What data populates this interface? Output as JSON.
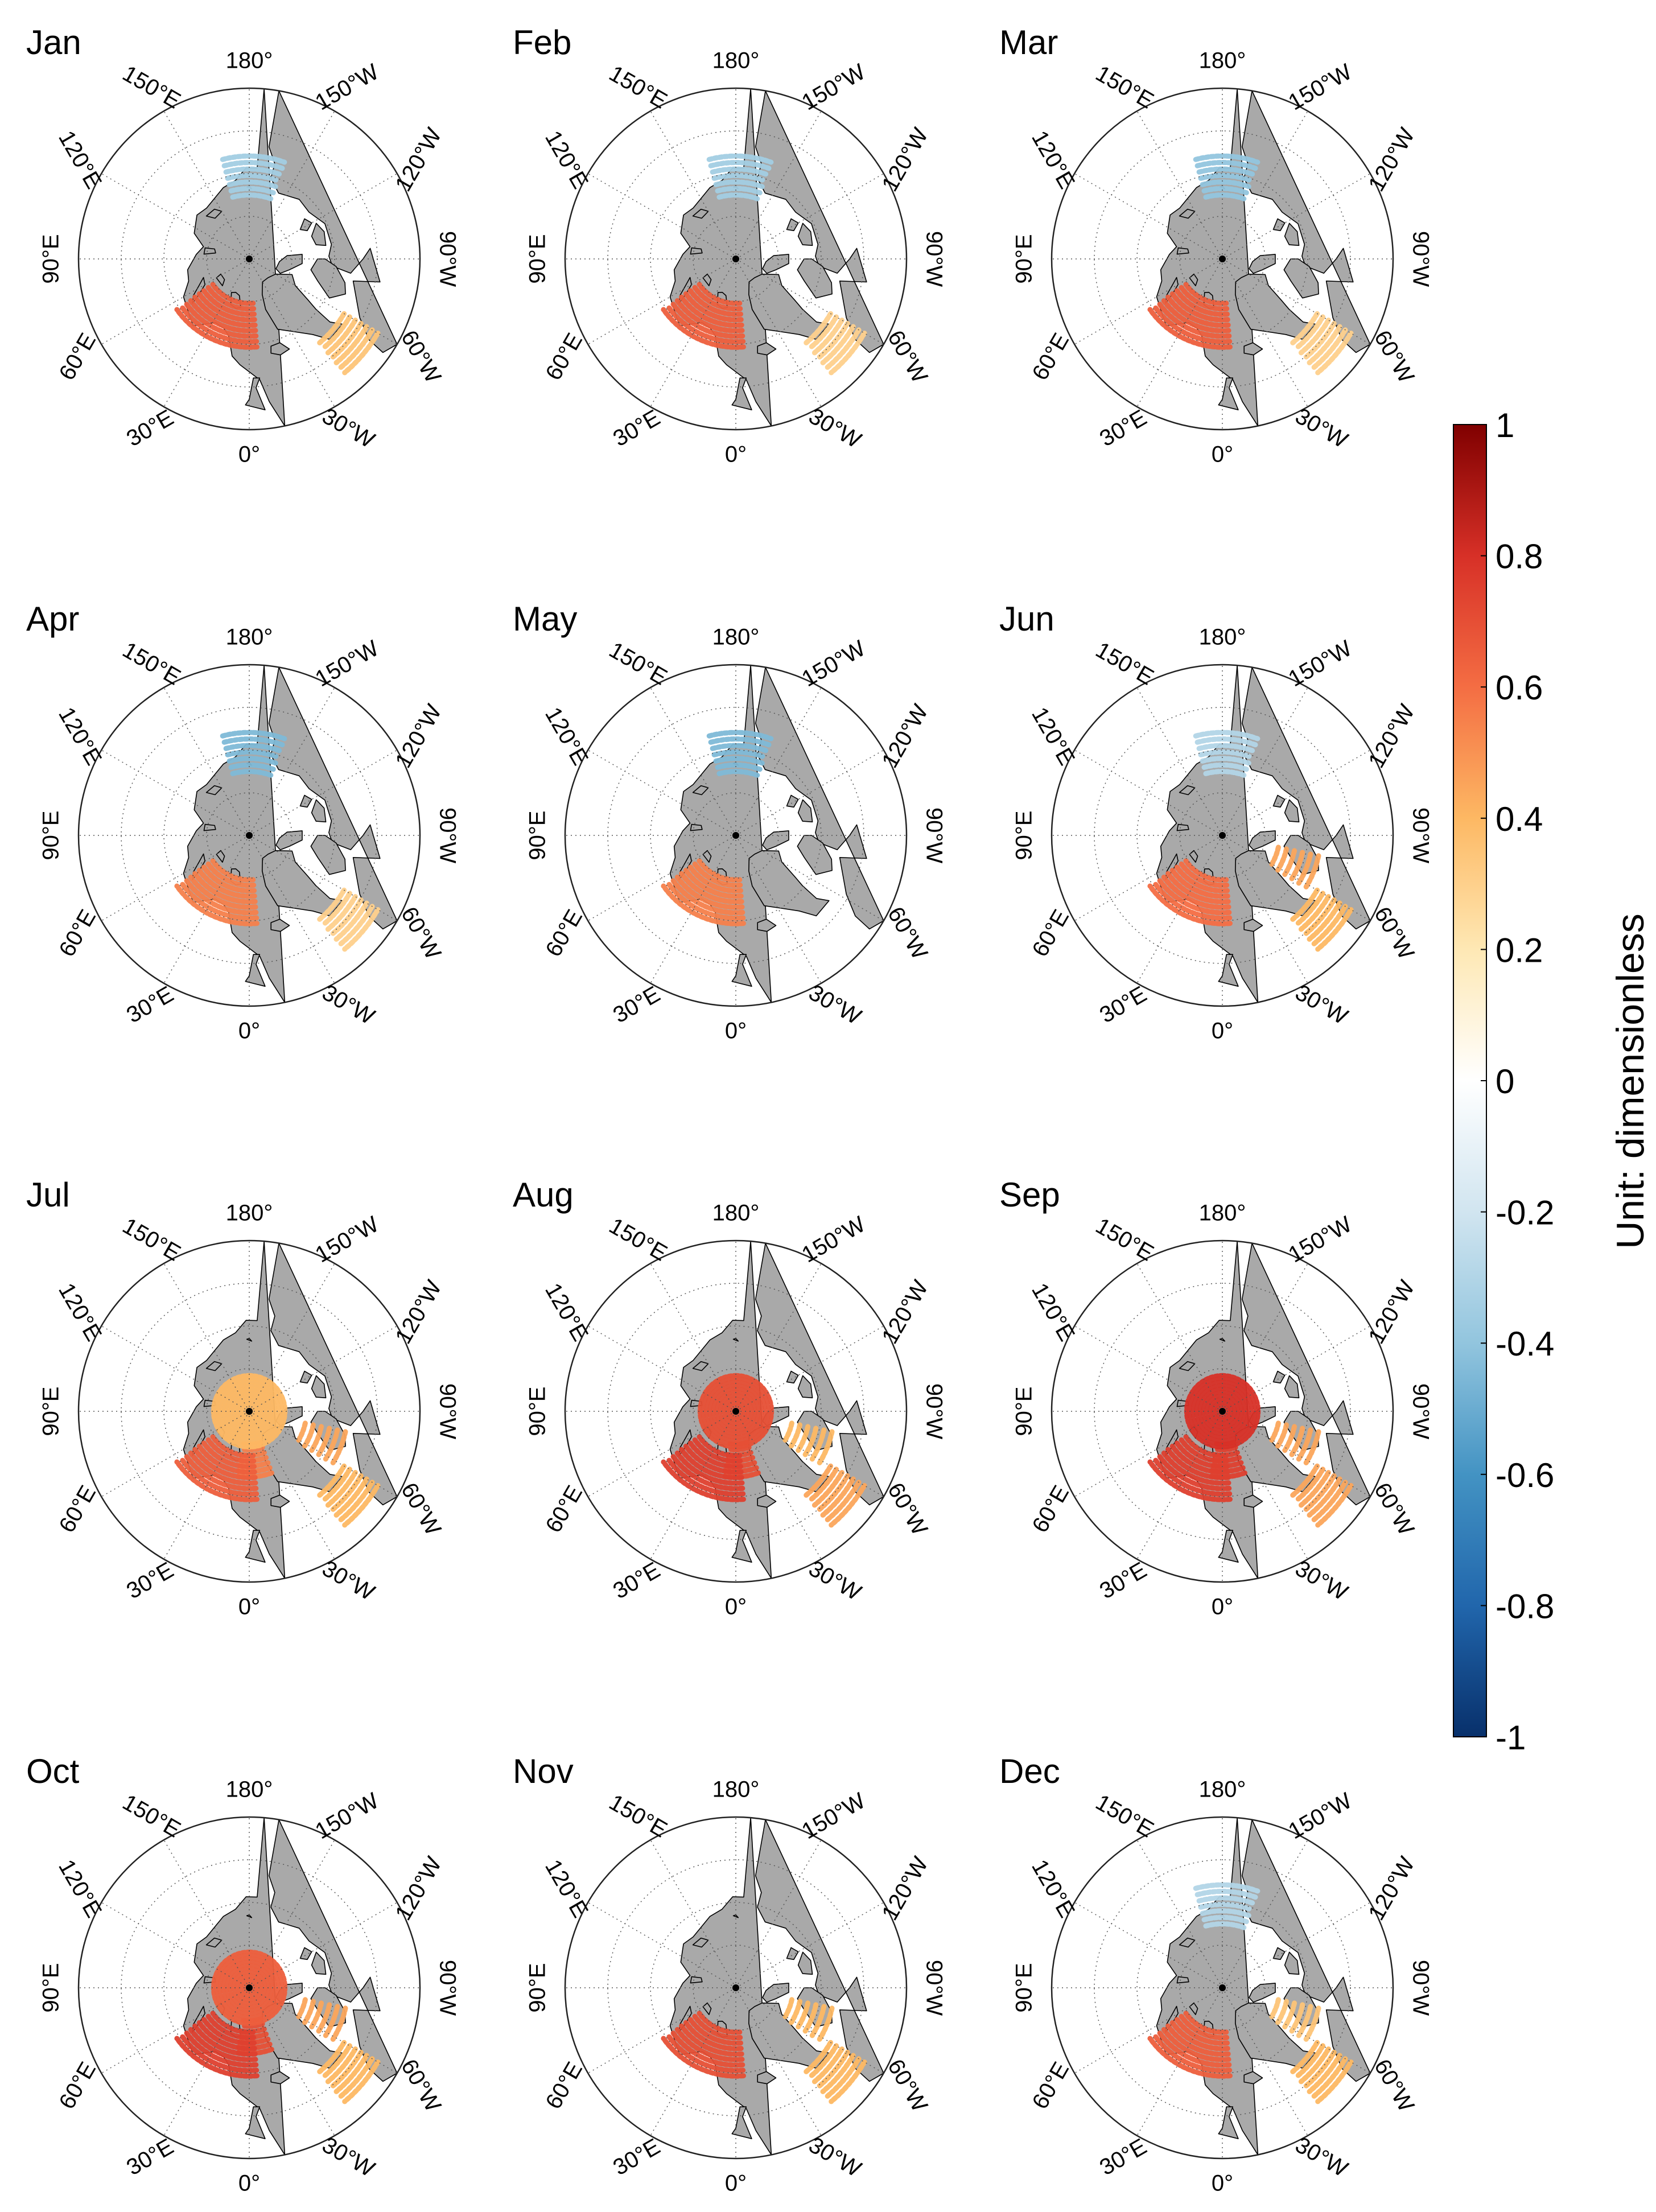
{
  "figure": {
    "panels": [
      {
        "month": "Jan",
        "activity": {
          "pacific": -0.35,
          "baffin": 0.0,
          "labrador": 0.35,
          "greenland_sea": 0.0,
          "barents": 0.65,
          "central_arctic": 0.0
        }
      },
      {
        "month": "Feb",
        "activity": {
          "pacific": -0.35,
          "baffin": 0.0,
          "labrador": 0.3,
          "greenland_sea": 0.0,
          "barents": 0.65,
          "central_arctic": 0.0
        }
      },
      {
        "month": "Mar",
        "activity": {
          "pacific": -0.4,
          "baffin": 0.0,
          "labrador": 0.3,
          "greenland_sea": 0.0,
          "barents": 0.65,
          "central_arctic": 0.0
        }
      },
      {
        "month": "Apr",
        "activity": {
          "pacific": -0.45,
          "baffin": 0.0,
          "labrador": 0.3,
          "greenland_sea": 0.0,
          "barents": 0.55,
          "central_arctic": 0.0
        }
      },
      {
        "month": "May",
        "activity": {
          "pacific": -0.45,
          "baffin": 0.0,
          "labrador": 0.0,
          "greenland_sea": 0.0,
          "barents": 0.55,
          "central_arctic": 0.0
        }
      },
      {
        "month": "Jun",
        "activity": {
          "pacific": -0.3,
          "baffin": 0.45,
          "labrador": 0.4,
          "greenland_sea": 0.0,
          "barents": 0.6,
          "central_arctic": 0.0
        }
      },
      {
        "month": "Jul",
        "activity": {
          "pacific": 0.0,
          "baffin": 0.45,
          "labrador": 0.4,
          "greenland_sea": 0.55,
          "barents": 0.65,
          "central_arctic": 0.4
        }
      },
      {
        "month": "Aug",
        "activity": {
          "pacific": 0.0,
          "baffin": 0.4,
          "labrador": 0.45,
          "greenland_sea": 0.7,
          "barents": 0.75,
          "central_arctic": 0.7
        }
      },
      {
        "month": "Sep",
        "activity": {
          "pacific": 0.0,
          "baffin": 0.45,
          "labrador": 0.45,
          "greenland_sea": 0.75,
          "barents": 0.75,
          "central_arctic": 0.8
        }
      },
      {
        "month": "Oct",
        "activity": {
          "pacific": 0.0,
          "baffin": 0.45,
          "labrador": 0.4,
          "greenland_sea": 0.7,
          "barents": 0.75,
          "central_arctic": 0.65
        }
      },
      {
        "month": "Nov",
        "activity": {
          "pacific": 0.0,
          "baffin": 0.4,
          "labrador": 0.4,
          "greenland_sea": 0.0,
          "barents": 0.7,
          "central_arctic": 0.0
        }
      },
      {
        "month": "Dec",
        "activity": {
          "pacific": -0.3,
          "baffin": 0.35,
          "labrador": 0.4,
          "greenland_sea": 0.0,
          "barents": 0.65,
          "central_arctic": 0.0
        }
      }
    ],
    "longitude_labels": [
      {
        "lon": 180,
        "text": "180°"
      },
      {
        "lon": 150,
        "text": "150°E"
      },
      {
        "lon": 120,
        "text": "120°E"
      },
      {
        "lon": 90,
        "text": "90°E"
      },
      {
        "lon": 60,
        "text": "60°E"
      },
      {
        "lon": 30,
        "text": "30°E"
      },
      {
        "lon": 0,
        "text": "0°"
      },
      {
        "lon": -30,
        "text": "30°W"
      },
      {
        "lon": -60,
        "text": "60°W"
      },
      {
        "lon": -90,
        "text": "90°W"
      },
      {
        "lon": -120,
        "text": "120°W"
      },
      {
        "lon": -150,
        "text": "150°W"
      }
    ],
    "colors": {
      "land": "#a9a9a9",
      "ocean": "#ffffff",
      "coastline": "#000000",
      "graticule": "#555555"
    },
    "colorbar": {
      "label": "Unit: dimensionless",
      "min": -1,
      "max": 1,
      "ticks": [
        "1",
        "0.8",
        "0.6",
        "0.4",
        "0.2",
        "0",
        "-0.2",
        "-0.4",
        "-0.6",
        "-0.8",
        "-1"
      ],
      "tick_values": [
        1,
        0.8,
        0.6,
        0.4,
        0.2,
        0,
        -0.2,
        -0.4,
        -0.6,
        -0.8,
        -1
      ],
      "colors": [
        "#08306b",
        "#2166ac",
        "#4393c3",
        "#92c5de",
        "#d1e5f0",
        "#ffffff",
        "#fee8b4",
        "#fdb863",
        "#f46d43",
        "#d73027",
        "#800000"
      ]
    }
  }
}
